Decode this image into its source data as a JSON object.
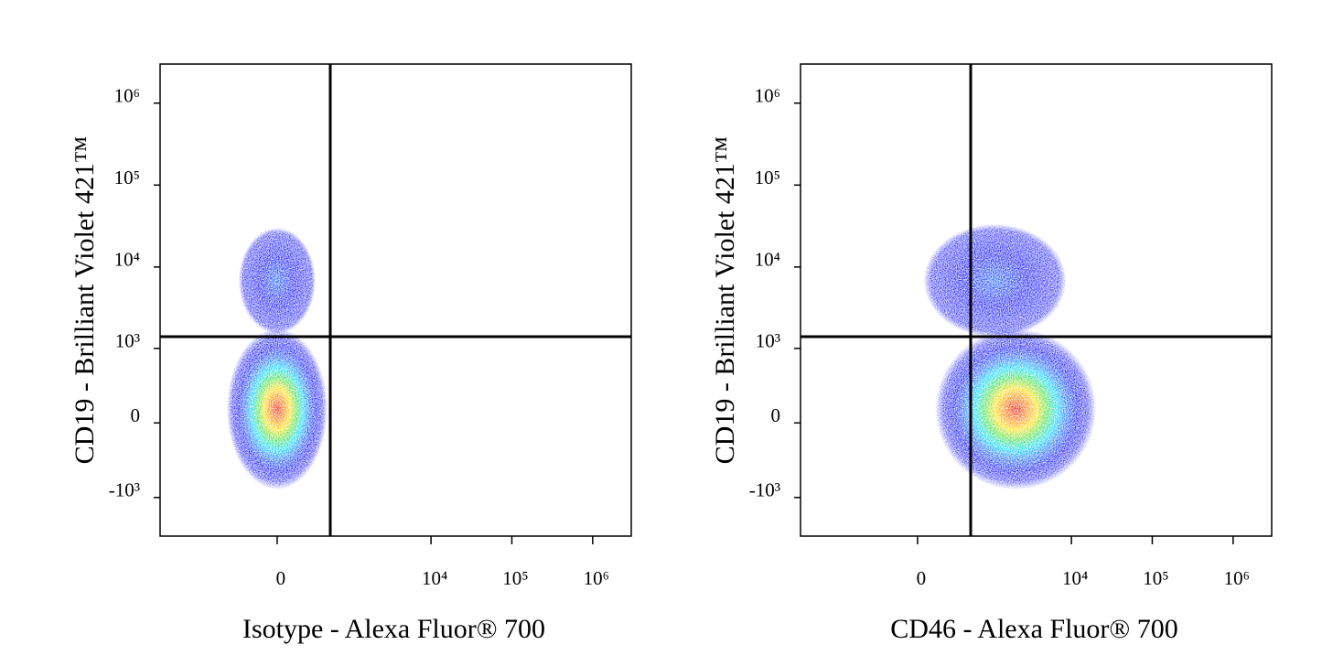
{
  "chart_data": [
    {
      "type": "scatter",
      "scale": "biexponential",
      "x_label": "Isotype - Alexa Fluor® 700",
      "y_label": "CD19 - Brilliant Violet 421™",
      "xlim": [
        -3500,
        3000000
      ],
      "ylim": [
        -3000,
        3000000
      ],
      "xticks": [
        0,
        {
          "value": 10000,
          "label": "10⁴"
        },
        {
          "value": 100000,
          "label": "10⁵"
        },
        {
          "value": 1000000,
          "label": "10⁶"
        }
      ],
      "yticks": [
        {
          "value": -1000,
          "label": "-10³"
        },
        0,
        {
          "value": 1000,
          "label": "10³"
        },
        {
          "value": 10000,
          "label": "10⁴"
        },
        {
          "value": 100000,
          "label": "10⁵"
        },
        {
          "value": 1000000,
          "label": "10⁶"
        }
      ],
      "gate": {
        "x": 540,
        "y": 1400
      },
      "points": [
        {
          "x": 0,
          "y": 6800,
          "color": "#1a60ff"
        },
        {
          "x": 0,
          "y": 100,
          "color": "#e00000"
        }
      ]
    },
    {
      "type": "scatter",
      "scale": "biexponential",
      "x_label": "CD46 - Alexa Fluor® 700",
      "y_label": "CD19 - Brilliant Violet 421™",
      "xlim": [
        -3500,
        3000000
      ],
      "ylim": [
        -3000,
        3000000
      ],
      "xticks": [
        0,
        {
          "value": 10000,
          "label": "10⁴"
        },
        {
          "value": 100000,
          "label": "10⁵"
        },
        {
          "value": 1000000,
          "label": "10⁶"
        }
      ],
      "yticks": [
        {
          "value": -1000,
          "label": "-10³"
        },
        0,
        {
          "value": 1000,
          "label": "10³"
        },
        {
          "value": 10000,
          "label": "10⁴"
        },
        {
          "value": 100000,
          "label": "10⁵"
        },
        {
          "value": 1000000,
          "label": "10⁶"
        }
      ],
      "gate": {
        "x": 540,
        "y": 1400
      },
      "points": [
        {
          "x": 1120,
          "y": 6800,
          "color": "#1a60ff"
        },
        {
          "x": 2040,
          "y": 100,
          "color": "#e00000"
        }
      ]
    }
  ]
}
